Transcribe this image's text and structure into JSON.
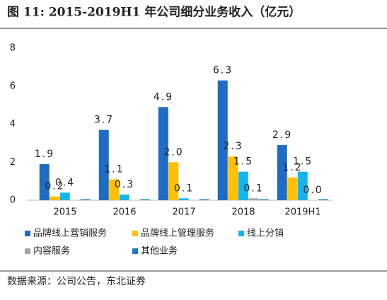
{
  "chart_data": {
    "type": "bar",
    "title": "图 11:  2015-2019H1 年公司细分业务收入（亿元）",
    "source": "数据来源：公司公告，东北证券",
    "categories": [
      "2015",
      "2016",
      "2017",
      "2018",
      "2019H1"
    ],
    "series": [
      {
        "name": "品牌线上营销服务",
        "color": "#1f6cc4",
        "values": [
          1.9,
          3.7,
          4.9,
          6.3,
          2.9
        ],
        "value_labels": [
          "1.9",
          "3.7",
          "4.9",
          "6.3",
          "2.9"
        ]
      },
      {
        "name": "品牌线上管理服务",
        "color": "#ffc000",
        "values": [
          0.2,
          1.1,
          2.0,
          2.3,
          1.2
        ],
        "value_labels": [
          "0.2",
          "1.1",
          "2.0",
          "2.3",
          "1.2"
        ]
      },
      {
        "name": "线上分销",
        "color": "#16b4ee",
        "values": [
          0.4,
          0.3,
          0.1,
          1.5,
          1.5
        ],
        "value_labels": [
          "0.4",
          "0.3",
          "0.1",
          "1.5",
          "1.5"
        ]
      },
      {
        "name": "内容服务",
        "color": "#a5a5a5",
        "values": [
          0,
          0,
          0,
          0.1,
          0.0
        ],
        "value_labels": [
          null,
          null,
          null,
          "0.1",
          "0.0"
        ]
      },
      {
        "name": "其他业务",
        "color": "#1a7dc0",
        "values": [
          0.05,
          0.05,
          0.05,
          0.05,
          0.05
        ],
        "value_labels": [
          null,
          null,
          null,
          null,
          null
        ]
      }
    ],
    "ylim": [
      0,
      8
    ],
    "yticks": [
      0,
      2,
      4,
      6,
      8
    ],
    "grid": false
  }
}
